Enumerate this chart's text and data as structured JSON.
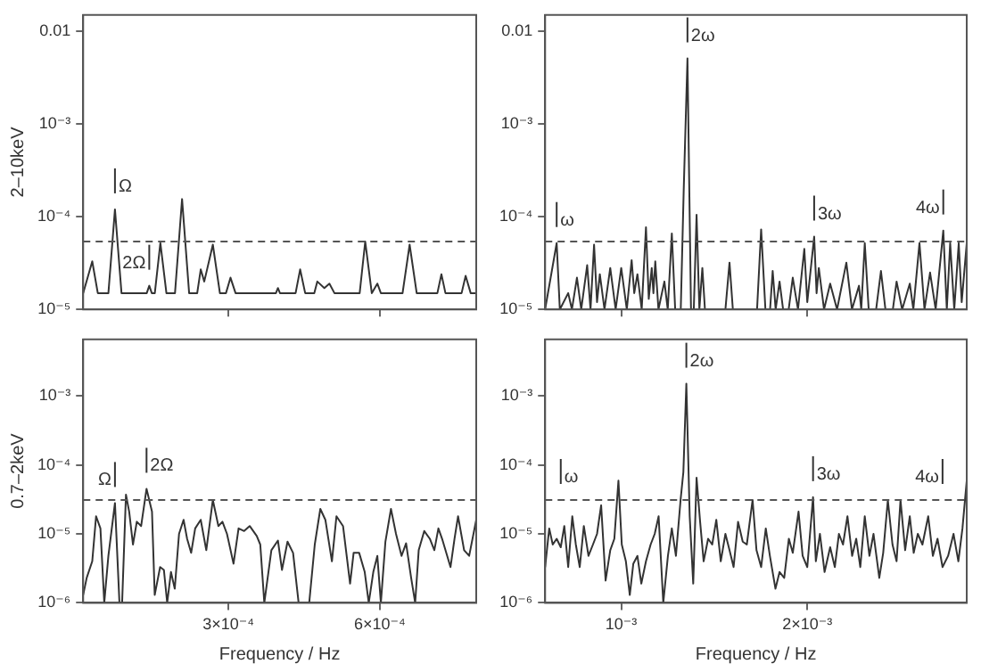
{
  "chart_data": [
    {
      "type": "line",
      "ylabel": "2–10keV",
      "log": "y",
      "marker": "none",
      "tick_labels": "y",
      "xlim": [
        1.2e-05,
        0.000791
      ],
      "xticks": [
        {
          "value": 0.0003,
          "label": null
        },
        {
          "value": 0.0006,
          "label": null
        }
      ],
      "ylim": [
        1e-05,
        0.015
      ],
      "yticks": [
        {
          "value": 1e-05,
          "label": "10⁻⁵"
        },
        {
          "value": 0.0001,
          "label": "10⁻⁴"
        },
        {
          "value": 0.001,
          "label": "10⁻³"
        },
        0.01
      ],
      "series": [
        {
          "color": "#333333",
          "x": [
            1.2e-05,
            3e-05,
            4.1e-05,
            6.2e-05,
            7.5e-05,
            8.8e-05,
            0.000138,
            0.000143,
            0.000148,
            0.000154,
            0.000165,
            0.000177,
            0.000194,
            0.000208,
            0.000222,
            0.000238,
            0.000245,
            0.000252,
            0.000269,
            0.000283,
            0.000295,
            0.000304,
            0.000314,
            0.000394,
            0.000398,
            0.000402,
            0.000433,
            0.000442,
            0.000452,
            0.00047,
            0.000476,
            0.00049,
            0.0005,
            0.00051,
            0.00056,
            0.000571,
            0.000584,
            0.000595,
            0.000602,
            0.000645,
            0.000659,
            0.000673,
            0.000714,
            0.000722,
            0.00073,
            0.000762,
            0.00077,
            0.00078,
            0.000791
          ],
          "values": [
            1.5e-05,
            3.3e-05,
            1.5e-05,
            1.5e-05,
            0.00012,
            1.5e-05,
            1.5e-05,
            1.8e-05,
            1.5e-05,
            1.5e-05,
            5.2e-05,
            1.5e-05,
            1.5e-05,
            0.000155,
            1.5e-05,
            1.5e-05,
            2.7e-05,
            2e-05,
            5e-05,
            1.5e-05,
            1.5e-05,
            2.2e-05,
            1.5e-05,
            1.5e-05,
            1.7e-05,
            1.5e-05,
            1.5e-05,
            2.7e-05,
            1.5e-05,
            1.5e-05,
            2e-05,
            1.7e-05,
            1.9e-05,
            1.5e-05,
            1.5e-05,
            5.4e-05,
            1.5e-05,
            1.9e-05,
            1.5e-05,
            1.5e-05,
            5e-05,
            1.5e-05,
            1.5e-05,
            2.4e-05,
            1.5e-05,
            1.5e-05,
            2.3e-05,
            1.5e-05,
            1.5e-05
          ]
        }
      ],
      "ref_lines": [
        {
          "axis": "y",
          "value": 5.4e-05,
          "line_style": "dashed",
          "color": "#555555"
        }
      ],
      "annotations": [
        {
          "text": "Ω",
          "x": 7.5e-05,
          "y": 0.00012
        },
        {
          "text": "2Ω",
          "x": 0.000143,
          "y": 1.8e-05
        }
      ]
    },
    {
      "type": "line",
      "log": "y",
      "marker": "none",
      "tick_labels": "y",
      "xlim": [
        0.000591,
        0.002857
      ],
      "xticks": [
        {
          "value": 0.001,
          "label": null
        },
        {
          "value": 0.002,
          "label": null
        }
      ],
      "ylim": [
        1e-05,
        0.015
      ],
      "yticks": [
        {
          "value": 1e-05,
          "label": "10⁻⁵"
        },
        {
          "value": 0.0001,
          "label": "10⁻⁴"
        },
        {
          "value": 0.001,
          "label": "10⁻³"
        },
        0.01
      ],
      "series": [
        {
          "color": "#333333",
          "x": [
            0.000591,
            0.000653,
            0.00067,
            0.000715,
            0.000735,
            0.000762,
            0.000785,
            0.000817,
            0.000835,
            0.000854,
            0.00087,
            0.000885,
            0.00091,
            0.000941,
            0.00097,
            0.001,
            0.00103,
            0.001056,
            0.00107,
            0.001087,
            0.00111,
            0.001133,
            0.001148,
            0.001164,
            0.001173,
            0.001183,
            0.0012,
            0.001232,
            0.00125,
            0.001272,
            0.00129,
            0.00132,
            0.001336,
            0.001356,
            0.001375,
            0.00139,
            0.001405,
            0.00142,
            0.001436,
            0.00145,
            0.00156,
            0.001582,
            0.0016,
            0.00173,
            0.001752,
            0.001775,
            0.0018,
            0.001814,
            0.00183,
            0.001851,
            0.00187,
            0.0019,
            0.001922,
            0.00195,
            0.001984,
            0.002,
            0.002037,
            0.00205,
            0.002062,
            0.00209,
            0.002123,
            0.00216,
            0.00221,
            0.00224,
            0.002278,
            0.00229,
            0.002309,
            0.00233,
            0.00237,
            0.002396,
            0.00242,
            0.00246,
            0.00248,
            0.00251,
            0.002551,
            0.00257,
            0.002603,
            0.00263,
            0.00266,
            0.00269,
            0.002731,
            0.00275,
            0.002768,
            0.00279,
            0.002814,
            0.00283,
            0.002857
          ],
          "values": [
            1e-05,
            5.2e-05,
            1e-05,
            1.5e-05,
            1e-05,
            2.2e-05,
            1e-05,
            3e-05,
            1e-05,
            5e-05,
            1.2e-05,
            2.4e-05,
            1e-05,
            2.8e-05,
            1e-05,
            2.8e-05,
            1e-05,
            3.4e-05,
            1.5e-05,
            2.4e-05,
            1e-05,
            7.7e-05,
            1.3e-05,
            2.8e-05,
            1.5e-05,
            3.3e-05,
            1e-05,
            2e-05,
            1e-05,
            6.6e-05,
            1e-05,
            1e-05,
            0.0002,
            0.0051,
            1e-05,
            1e-05,
            0.000105,
            1e-05,
            2.8e-05,
            1e-05,
            1e-05,
            3.2e-05,
            1e-05,
            1e-05,
            7.3e-05,
            1e-05,
            1e-05,
            2.6e-05,
            1e-05,
            2e-05,
            1e-05,
            1e-05,
            2.2e-05,
            1e-05,
            4.5e-05,
            1.2e-05,
            6.1e-05,
            1.5e-05,
            2.8e-05,
            1e-05,
            1.9e-05,
            1e-05,
            3.2e-05,
            1e-05,
            1.8e-05,
            1e-05,
            5.2e-05,
            1e-05,
            1e-05,
            2.6e-05,
            1e-05,
            1e-05,
            2e-05,
            1e-05,
            1.9e-05,
            1e-05,
            5.2e-05,
            1e-05,
            2.5e-05,
            1e-05,
            7.1e-05,
            1e-05,
            5.2e-05,
            1e-05,
            5.2e-05,
            1.2e-05,
            5.2e-05
          ]
        }
      ],
      "ref_lines": [
        {
          "axis": "y",
          "value": 5.4e-05,
          "line_style": "dashed",
          "color": "#555555"
        }
      ],
      "annotations": [
        {
          "text": "ω",
          "x": 0.000653,
          "y": 5.2e-05
        },
        {
          "text": "2ω",
          "x": 0.001356,
          "y": 0.0051
        },
        {
          "text": "3ω",
          "x": 0.002037,
          "y": 6.1e-05
        },
        {
          "text": "4ω",
          "x": 0.002731,
          "y": 7.1e-05
        }
      ]
    },
    {
      "type": "line",
      "ylabel": "0.7–2keV",
      "xlabel": "Frequency / Hz",
      "log": "y",
      "marker": "none",
      "xlim": [
        1.2e-05,
        0.000791
      ],
      "xticks": [
        {
          "value": 0.0003,
          "label": "3×10⁻⁴"
        },
        {
          "value": 0.0006,
          "label": "6×10⁻⁴"
        }
      ],
      "ylim": [
        1e-06,
        0.0066
      ],
      "yticks": [
        {
          "value": 1e-06,
          "label": "10⁻⁶"
        },
        {
          "value": 1e-05,
          "label": "10⁻⁵"
        },
        {
          "value": 0.0001,
          "label": "10⁻⁴"
        },
        {
          "value": 0.001,
          "label": "10⁻³"
        }
      ],
      "series": [
        {
          "color": "#333333",
          "x": [
            1.2e-05,
            1.9e-05,
            3e-05,
            3.76e-05,
            4.62e-05,
            5.38e-05,
            6.2e-05,
            7.5e-05,
            8.39e-05,
            8.92e-05,
            9.68e-05,
            0.0001032,
            0.0001107,
            0.0001183,
            0.0001269,
            0.0001376,
            0.0001484,
            0.0001538,
            0.0001645,
            0.000172,
            0.0001785,
            0.000186,
            0.0001935,
            0.000202,
            0.000211,
            0.000218,
            0.000226,
            0.000234,
            0.000245,
            0.000256,
            0.000269,
            0.00028,
            0.000288,
            0.000297,
            0.00031,
            0.00032,
            0.000331,
            0.000342,
            0.000356,
            0.000363,
            0.000371,
            0.000385,
            0.000398,
            0.000406,
            0.000417,
            0.000428,
            0.000439,
            0.00046,
            0.000471,
            0.000482,
            0.000492,
            0.000505,
            0.000514,
            0.000527,
            0.000541,
            0.000548,
            0.000559,
            0.00057,
            0.000578,
            0.000587,
            0.000595,
            0.000602,
            0.000611,
            0.000622,
            0.000632,
            0.000643,
            0.000652,
            0.000662,
            0.00067,
            0.000677,
            0.000688,
            0.000699,
            0.000708,
            0.000716,
            0.000724,
            0.00074,
            0.000748,
            0.000755,
            0.000767,
            0.000777,
            0.000791
          ],
          "values": [
            1.3e-06,
            2.3e-06,
            4e-06,
            1.8e-05,
            1.2e-05,
            1e-06,
            4.8e-06,
            2.8e-05,
            1e-06,
            1e-06,
            3.7e-05,
            2.1e-05,
            7e-06,
            1.5e-05,
            1.3e-05,
            4.5e-05,
            2.1e-05,
            1.3e-06,
            3.3e-06,
            3e-06,
            1e-06,
            2.8e-06,
            1.6e-06,
            1e-05,
            1.6e-05,
            8.5e-06,
            5.3e-06,
            1.2e-05,
            1.6e-05,
            5.8e-06,
            3.1e-05,
            1.3e-05,
            1.5e-05,
            1e-05,
            3.7e-06,
            1.2e-05,
            1.1e-05,
            1.3e-05,
            9.3e-06,
            7e-06,
            1e-06,
            5.8e-06,
            8e-06,
            3e-06,
            7.7e-06,
            5.3e-06,
            1e-06,
            1e-06,
            7e-06,
            2.3e-05,
            1.6e-05,
            4e-06,
            1.8e-05,
            1.3e-05,
            1.9e-06,
            5.3e-06,
            5.3e-06,
            2.8e-06,
            1e-06,
            2.8e-06,
            4.8e-06,
            1e-06,
            7.7e-06,
            2.3e-05,
            1e-05,
            4.8e-06,
            7.3e-06,
            2.3e-06,
            1e-06,
            5.8e-06,
            1.1e-05,
            8.5e-06,
            5.8e-06,
            1.2e-05,
            8.2e-06,
            3.3e-06,
            8.5e-06,
            1.8e-05,
            5.8e-06,
            4.8e-06,
            1.6e-05
          ]
        }
      ],
      "ref_lines": [
        {
          "axis": "y",
          "value": 3.1e-05,
          "line_style": "dashed",
          "color": "#555555"
        }
      ],
      "annotations": [
        {
          "text": "Ω",
          "x": 7.5e-05,
          "y": 2.8e-05
        },
        {
          "text": "2Ω",
          "x": 0.0001376,
          "y": 4.5e-05
        }
      ]
    },
    {
      "type": "line",
      "xlabel": "Frequency / Hz",
      "log": "y",
      "marker": "none",
      "xlim": [
        0.000591,
        0.002857
      ],
      "xticks": [
        {
          "value": 0.001,
          "label": "10⁻³"
        },
        {
          "value": 0.002,
          "label": "2×10⁻³"
        }
      ],
      "ylim": [
        1e-06,
        0.0066
      ],
      "yticks": [
        {
          "value": 1e-06,
          "label": "10⁻⁶"
        },
        {
          "value": 1e-05,
          "label": "10⁻⁵"
        },
        {
          "value": 0.0001,
          "label": "10⁻⁴"
        },
        {
          "value": 0.001,
          "label": "10⁻³"
        }
      ],
      "series": [
        {
          "color": "#333333",
          "x": [
            0.000591,
            0.000613,
            0.000632,
            0.000653,
            0.000675,
            0.000694,
            0.000715,
            0.000737,
            0.000756,
            0.000777,
            0.000799,
            0.000824,
            0.000848,
            0.00087,
            0.000892,
            0.000916,
            0.000941,
            0.000963,
            0.000985,
            0.001003,
            0.001025,
            0.001046,
            0.001065,
            0.001087,
            0.001108,
            0.001133,
            0.001158,
            0.00118,
            0.001201,
            0.001226,
            0.001251,
            0.001272,
            0.001294,
            0.001319,
            0.001334,
            0.00135,
            0.001368,
            0.001387,
            0.001405,
            0.001424,
            0.001443,
            0.001467,
            0.001489,
            0.001511,
            0.001535,
            0.00156,
            0.001582,
            0.001604,
            0.001628,
            0.001653,
            0.001675,
            0.001706,
            0.001727,
            0.001752,
            0.001777,
            0.001799,
            0.001829,
            0.001851,
            0.001876,
            0.001901,
            0.001922,
            0.001953,
            0.001975,
            0.002,
            0.002031,
            0.002046,
            0.002068,
            0.002093,
            0.002123,
            0.002148,
            0.00217,
            0.002192,
            0.002216,
            0.002241,
            0.002263,
            0.002285,
            0.002309,
            0.002334,
            0.002356,
            0.002387,
            0.002408,
            0.002433,
            0.002458,
            0.00248,
            0.002501,
            0.002526,
            0.002551,
            0.002572,
            0.002594,
            0.002619,
            0.00265,
            0.002675,
            0.0027,
            0.002727,
            0.002757,
            0.002786,
            0.002812,
            0.002834,
            0.002857
          ],
          "values": [
            3.3e-06,
            1.2e-05,
            7e-06,
            8.5e-06,
            6.4e-06,
            1.3e-05,
            3.3e-06,
            1.8e-05,
            7e-06,
            3.3e-06,
            1.3e-05,
            4.8e-06,
            7e-06,
            1e-05,
            2.6e-05,
            2.1e-06,
            5.8e-06,
            8.5e-06,
            5.9e-05,
            7e-06,
            4e-06,
            1.3e-06,
            3.7e-06,
            4.8e-06,
            1.9e-06,
            4e-06,
            7e-06,
            1e-05,
            1.8e-05,
            1e-06,
            4.8e-06,
            1.2e-05,
            4.8e-06,
            3.1e-05,
            7.9e-05,
            0.0015,
            1.8e-05,
            1.9e-06,
            6.5e-05,
            1.5e-05,
            4e-06,
            8.5e-06,
            7e-06,
            1.6e-05,
            4e-06,
            1e-05,
            5.8e-06,
            3.3e-06,
            1.5e-05,
            7.7e-06,
            7e-06,
            3.1e-05,
            5.8e-06,
            3.3e-06,
            1.2e-05,
            4.8e-06,
            1.6e-06,
            2.8e-06,
            2.3e-06,
            8.5e-06,
            5.3e-06,
            2.1e-05,
            4.8e-06,
            3.3e-06,
            3.4e-05,
            4e-06,
            1e-05,
            2.8e-06,
            6.4e-06,
            3.3e-06,
            1e-05,
            7e-06,
            1.8e-05,
            4.8e-06,
            8.5e-06,
            3.3e-06,
            1.8e-05,
            4.8e-06,
            1e-05,
            2.3e-06,
            5.3e-06,
            3.1e-05,
            7e-06,
            4e-06,
            3.1e-05,
            5.8e-06,
            1.8e-05,
            5.3e-06,
            1e-05,
            7e-06,
            1.8e-05,
            4.8e-06,
            8.5e-06,
            3.3e-06,
            4.8e-06,
            1e-05,
            4e-06,
            1.2e-05,
            5.9e-05
          ]
        }
      ],
      "ref_lines": [
        {
          "axis": "y",
          "value": 3.1e-05,
          "line_style": "dashed",
          "color": "#555555"
        }
      ],
      "annotations": [
        {
          "text": "ω",
          "x": 0.000675,
          "y": 3.1e-05
        },
        {
          "text": "2ω",
          "x": 0.00135,
          "y": 0.0015
        },
        {
          "text": "3ω",
          "x": 0.002031,
          "y": 3.4e-05
        },
        {
          "text": "4ω",
          "x": 0.002727,
          "y": 3.1e-05
        }
      ]
    }
  ]
}
